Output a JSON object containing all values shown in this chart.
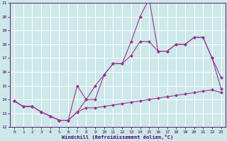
{
  "background_color": "#cde8e8",
  "grid_color": "#ffffff",
  "line_color": "#993399",
  "xlabel": "Windchill (Refroidissement éolien,°C)",
  "xlim": [
    -0.5,
    23.5
  ],
  "ylim": [
    12,
    21
  ],
  "yticks": [
    12,
    13,
    14,
    15,
    16,
    17,
    18,
    19,
    20,
    21
  ],
  "xticks": [
    0,
    1,
    2,
    3,
    4,
    5,
    6,
    7,
    8,
    9,
    10,
    11,
    12,
    13,
    14,
    15,
    16,
    17,
    18,
    19,
    20,
    21,
    22,
    23
  ],
  "line1_x": [
    0,
    1,
    2,
    3,
    4,
    5,
    6,
    7,
    8,
    9,
    10,
    11,
    12,
    13,
    14,
    15,
    16,
    17,
    18,
    19,
    20,
    21,
    22,
    23
  ],
  "line1_y": [
    13.9,
    13.5,
    13.5,
    13.1,
    12.8,
    12.5,
    12.5,
    13.1,
    14.0,
    14.0,
    15.8,
    16.6,
    16.6,
    17.2,
    18.2,
    18.2,
    17.5,
    17.5,
    18.0,
    18.0,
    18.5,
    18.5,
    17.0,
    15.6
  ],
  "line2_x": [
    0,
    1,
    2,
    3,
    4,
    5,
    6,
    7,
    8,
    9,
    10,
    11,
    12,
    13,
    14,
    15,
    16,
    17,
    18,
    19,
    20,
    21,
    22,
    23
  ],
  "line2_y": [
    13.9,
    13.5,
    13.5,
    13.1,
    12.8,
    12.5,
    12.5,
    15.0,
    14.0,
    15.0,
    15.8,
    16.6,
    16.6,
    18.2,
    20.0,
    21.3,
    17.5,
    17.5,
    18.0,
    18.0,
    18.5,
    18.5,
    17.0,
    14.8
  ],
  "line3_x": [
    0,
    1,
    2,
    3,
    4,
    5,
    6,
    7,
    8,
    9,
    10,
    11,
    12,
    13,
    14,
    15,
    16,
    17,
    18,
    19,
    20,
    21,
    22,
    23
  ],
  "line3_y": [
    13.9,
    13.5,
    13.5,
    13.1,
    12.8,
    12.5,
    12.5,
    13.1,
    13.4,
    13.4,
    13.5,
    13.6,
    13.7,
    13.8,
    13.9,
    14.0,
    14.1,
    14.2,
    14.3,
    14.4,
    14.5,
    14.6,
    14.7,
    14.5
  ]
}
